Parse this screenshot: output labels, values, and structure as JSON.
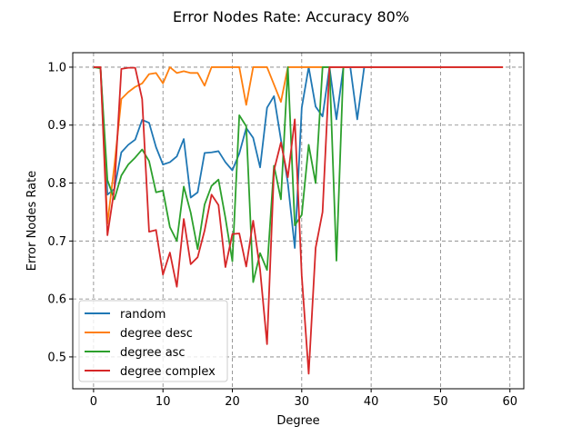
{
  "chart_data": {
    "type": "line",
    "title": "Error Nodes Rate: Accuracy 80%",
    "xlabel": "Degree",
    "ylabel": "Error Nodes Rate",
    "xlim": [
      -3,
      62
    ],
    "ylim": [
      0.445,
      1.025
    ],
    "xticks": [
      0,
      10,
      20,
      30,
      40,
      50,
      60
    ],
    "yticks": [
      0.5,
      0.6,
      0.7,
      0.8,
      0.9,
      1.0
    ],
    "xtick_labels": [
      "0",
      "10",
      "20",
      "30",
      "40",
      "50",
      "60"
    ],
    "ytick_labels": [
      "0.5",
      "0.6",
      "0.7",
      "0.8",
      "0.9",
      "1.0"
    ],
    "grid": true,
    "legend_position": "lower-left",
    "series": [
      {
        "name": "random",
        "color": "#1f77b4",
        "x": [
          0,
          1,
          2,
          3,
          4,
          5,
          6,
          7,
          8,
          9,
          10,
          11,
          12,
          13,
          14,
          15,
          16,
          17,
          18,
          19,
          20,
          21,
          22,
          23,
          24,
          25,
          26,
          27,
          28,
          29,
          30,
          31,
          32,
          33,
          34,
          35,
          36,
          37,
          38,
          39
        ],
        "y": [
          1.0,
          1.0,
          0.78,
          0.79,
          0.853,
          0.866,
          0.875,
          0.909,
          0.904,
          0.862,
          0.832,
          0.836,
          0.846,
          0.876,
          0.775,
          0.784,
          0.852,
          0.853,
          0.855,
          0.836,
          0.822,
          0.851,
          0.895,
          0.878,
          0.827,
          0.93,
          0.95,
          0.875,
          0.8,
          0.688,
          0.93,
          1.0,
          0.932,
          0.915,
          1.0,
          0.91,
          1.0,
          1.0,
          0.91,
          1.0
        ]
      },
      {
        "name": "degree desc",
        "color": "#ff7f0e",
        "x": [
          0,
          1,
          2,
          3,
          4,
          5,
          6,
          7,
          8,
          9,
          10,
          11,
          12,
          13,
          14,
          15,
          16,
          17,
          18,
          19,
          20,
          21,
          22,
          23,
          24,
          25,
          26,
          27,
          28,
          29,
          30,
          31,
          32,
          33,
          34,
          35,
          36,
          37,
          38,
          39,
          40,
          41,
          42,
          43,
          44,
          45,
          46,
          47,
          48,
          49,
          50,
          51,
          52,
          53,
          54,
          55,
          56,
          57,
          58,
          59
        ],
        "y": [
          1.0,
          1.0,
          0.73,
          0.83,
          0.945,
          0.957,
          0.966,
          0.972,
          0.988,
          0.99,
          0.972,
          1.0,
          0.99,
          0.993,
          0.99,
          0.99,
          0.968,
          1.0,
          1.0,
          1.0,
          1.0,
          1.0,
          0.935,
          1.0,
          1.0,
          1.0,
          0.97,
          0.94,
          1.0,
          1.0,
          1.0,
          1.0,
          1.0,
          1.0,
          1.0,
          1.0,
          1.0,
          1.0,
          1.0,
          1.0,
          1.0,
          1.0,
          1.0,
          1.0,
          1.0,
          1.0,
          1.0,
          1.0,
          1.0,
          1.0,
          1.0,
          1.0,
          1.0,
          1.0,
          1.0,
          1.0,
          1.0,
          1.0,
          1.0,
          1.0
        ]
      },
      {
        "name": "degree asc",
        "color": "#2ca02c",
        "x": [
          0,
          1,
          2,
          3,
          4,
          5,
          6,
          7,
          8,
          9,
          10,
          11,
          12,
          13,
          14,
          15,
          16,
          17,
          18,
          19,
          20,
          21,
          22,
          23,
          24,
          25,
          26,
          27,
          28,
          29,
          30,
          31,
          32,
          33,
          34,
          35,
          36
        ],
        "y": [
          1.0,
          0.998,
          0.805,
          0.772,
          0.813,
          0.832,
          0.844,
          0.858,
          0.838,
          0.784,
          0.787,
          0.724,
          0.7,
          0.794,
          0.749,
          0.686,
          0.763,
          0.795,
          0.806,
          0.74,
          0.665,
          0.917,
          0.898,
          0.629,
          0.679,
          0.65,
          0.83,
          0.772,
          1.0,
          0.727,
          0.745,
          0.866,
          0.8,
          1.0,
          1.0,
          0.666,
          1.0
        ]
      },
      {
        "name": "degree complex",
        "color": "#d62728",
        "x": [
          0,
          1,
          2,
          3,
          4,
          5,
          6,
          7,
          8,
          9,
          10,
          11,
          12,
          13,
          14,
          15,
          16,
          17,
          18,
          19,
          20,
          21,
          22,
          23,
          24,
          25,
          26,
          27,
          28,
          29,
          30,
          31,
          32,
          33,
          34,
          35,
          36,
          37,
          38,
          39,
          40,
          41,
          42,
          43,
          44,
          45,
          46,
          47,
          48,
          49,
          50,
          51,
          52,
          53,
          54,
          55,
          56,
          57,
          58,
          59
        ],
        "y": [
          1.0,
          1.0,
          0.71,
          0.79,
          0.997,
          0.999,
          0.999,
          0.945,
          0.716,
          0.719,
          0.642,
          0.68,
          0.621,
          0.738,
          0.66,
          0.672,
          0.718,
          0.78,
          0.762,
          0.655,
          0.712,
          0.713,
          0.656,
          0.735,
          0.65,
          0.522,
          0.822,
          0.87,
          0.81,
          0.91,
          0.64,
          0.471,
          0.688,
          0.75,
          1.0,
          1.0,
          1.0,
          1.0,
          1.0,
          1.0,
          1.0,
          1.0,
          1.0,
          1.0,
          1.0,
          1.0,
          1.0,
          1.0,
          1.0,
          1.0,
          1.0,
          1.0,
          1.0,
          1.0,
          1.0,
          1.0,
          1.0,
          1.0,
          1.0,
          1.0
        ]
      }
    ]
  }
}
